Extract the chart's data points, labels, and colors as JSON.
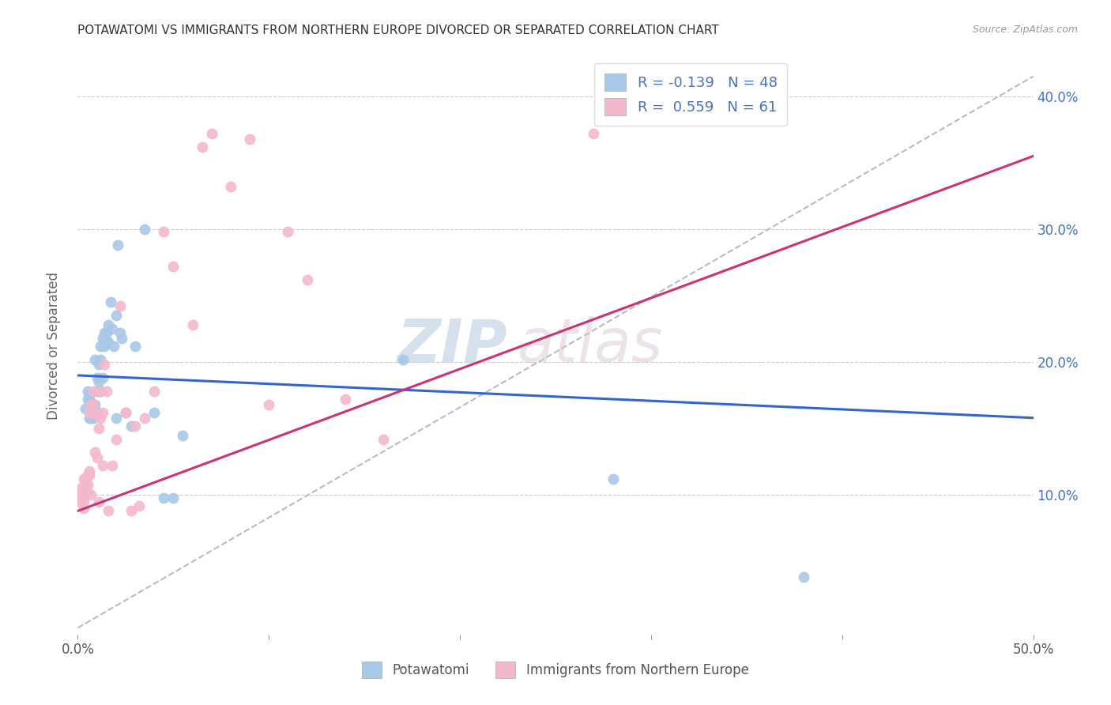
{
  "title": "POTAWATOMI VS IMMIGRANTS FROM NORTHERN EUROPE DIVORCED OR SEPARATED CORRELATION CHART",
  "source": "Source: ZipAtlas.com",
  "ylabel": "Divorced or Separated",
  "xlim": [
    0.0,
    0.5
  ],
  "ylim": [
    -0.005,
    0.43
  ],
  "legend1_label": "R = -0.139   N = 48",
  "legend2_label": "R =  0.559   N = 61",
  "legend_bottom_left": "Potawatomi",
  "legend_bottom_right": "Immigrants from Northern Europe",
  "blue_color": "#a8c8e8",
  "pink_color": "#f4b8cc",
  "blue_line_color": "#3366cc",
  "pink_line_color": "#cc3377",
  "dashed_line_color": "#bbbbbb",
  "watermark_zip": "ZIP",
  "watermark_atlas": "atlas",
  "blue_scatter_x": [
    0.004,
    0.005,
    0.005,
    0.006,
    0.006,
    0.007,
    0.007,
    0.007,
    0.008,
    0.008,
    0.009,
    0.009,
    0.01,
    0.01,
    0.01,
    0.011,
    0.011,
    0.011,
    0.012,
    0.012,
    0.012,
    0.013,
    0.013,
    0.014,
    0.014,
    0.015,
    0.015,
    0.016,
    0.016,
    0.017,
    0.018,
    0.019,
    0.02,
    0.02,
    0.021,
    0.022,
    0.023,
    0.025,
    0.028,
    0.03,
    0.035,
    0.04,
    0.045,
    0.05,
    0.055,
    0.17,
    0.28,
    0.38
  ],
  "blue_scatter_y": [
    0.165,
    0.172,
    0.178,
    0.158,
    0.175,
    0.158,
    0.165,
    0.17,
    0.158,
    0.165,
    0.168,
    0.202,
    0.188,
    0.178,
    0.162,
    0.178,
    0.185,
    0.198,
    0.178,
    0.202,
    0.212,
    0.188,
    0.218,
    0.222,
    0.212,
    0.222,
    0.215,
    0.228,
    0.215,
    0.245,
    0.225,
    0.212,
    0.158,
    0.235,
    0.288,
    0.222,
    0.218,
    0.162,
    0.152,
    0.212,
    0.3,
    0.162,
    0.098,
    0.098,
    0.145,
    0.202,
    0.112,
    0.038
  ],
  "pink_scatter_x": [
    0.001,
    0.001,
    0.001,
    0.002,
    0.002,
    0.002,
    0.002,
    0.003,
    0.003,
    0.003,
    0.003,
    0.003,
    0.004,
    0.004,
    0.004,
    0.004,
    0.005,
    0.005,
    0.005,
    0.006,
    0.006,
    0.006,
    0.007,
    0.007,
    0.008,
    0.008,
    0.008,
    0.009,
    0.01,
    0.01,
    0.011,
    0.011,
    0.012,
    0.012,
    0.013,
    0.013,
    0.014,
    0.015,
    0.016,
    0.018,
    0.02,
    0.022,
    0.025,
    0.028,
    0.03,
    0.032,
    0.035,
    0.04,
    0.045,
    0.05,
    0.06,
    0.065,
    0.07,
    0.08,
    0.09,
    0.1,
    0.11,
    0.12,
    0.14,
    0.16,
    0.27
  ],
  "pink_scatter_y": [
    0.095,
    0.1,
    0.105,
    0.095,
    0.1,
    0.105,
    0.1,
    0.09,
    0.095,
    0.1,
    0.105,
    0.112,
    0.1,
    0.105,
    0.108,
    0.112,
    0.102,
    0.108,
    0.115,
    0.115,
    0.118,
    0.162,
    0.1,
    0.168,
    0.162,
    0.168,
    0.178,
    0.132,
    0.16,
    0.128,
    0.15,
    0.095,
    0.178,
    0.158,
    0.122,
    0.162,
    0.198,
    0.178,
    0.088,
    0.122,
    0.142,
    0.242,
    0.162,
    0.088,
    0.152,
    0.092,
    0.158,
    0.178,
    0.298,
    0.272,
    0.228,
    0.362,
    0.372,
    0.332,
    0.368,
    0.168,
    0.298,
    0.262,
    0.172,
    0.142,
    0.372
  ],
  "blue_line_x": [
    0.0,
    0.5
  ],
  "blue_line_y": [
    0.19,
    0.158
  ],
  "pink_line_x": [
    0.0,
    0.5
  ],
  "pink_line_y": [
    0.088,
    0.355
  ],
  "diag_line_x": [
    0.0,
    0.5
  ],
  "diag_line_y": [
    0.0,
    0.415
  ]
}
